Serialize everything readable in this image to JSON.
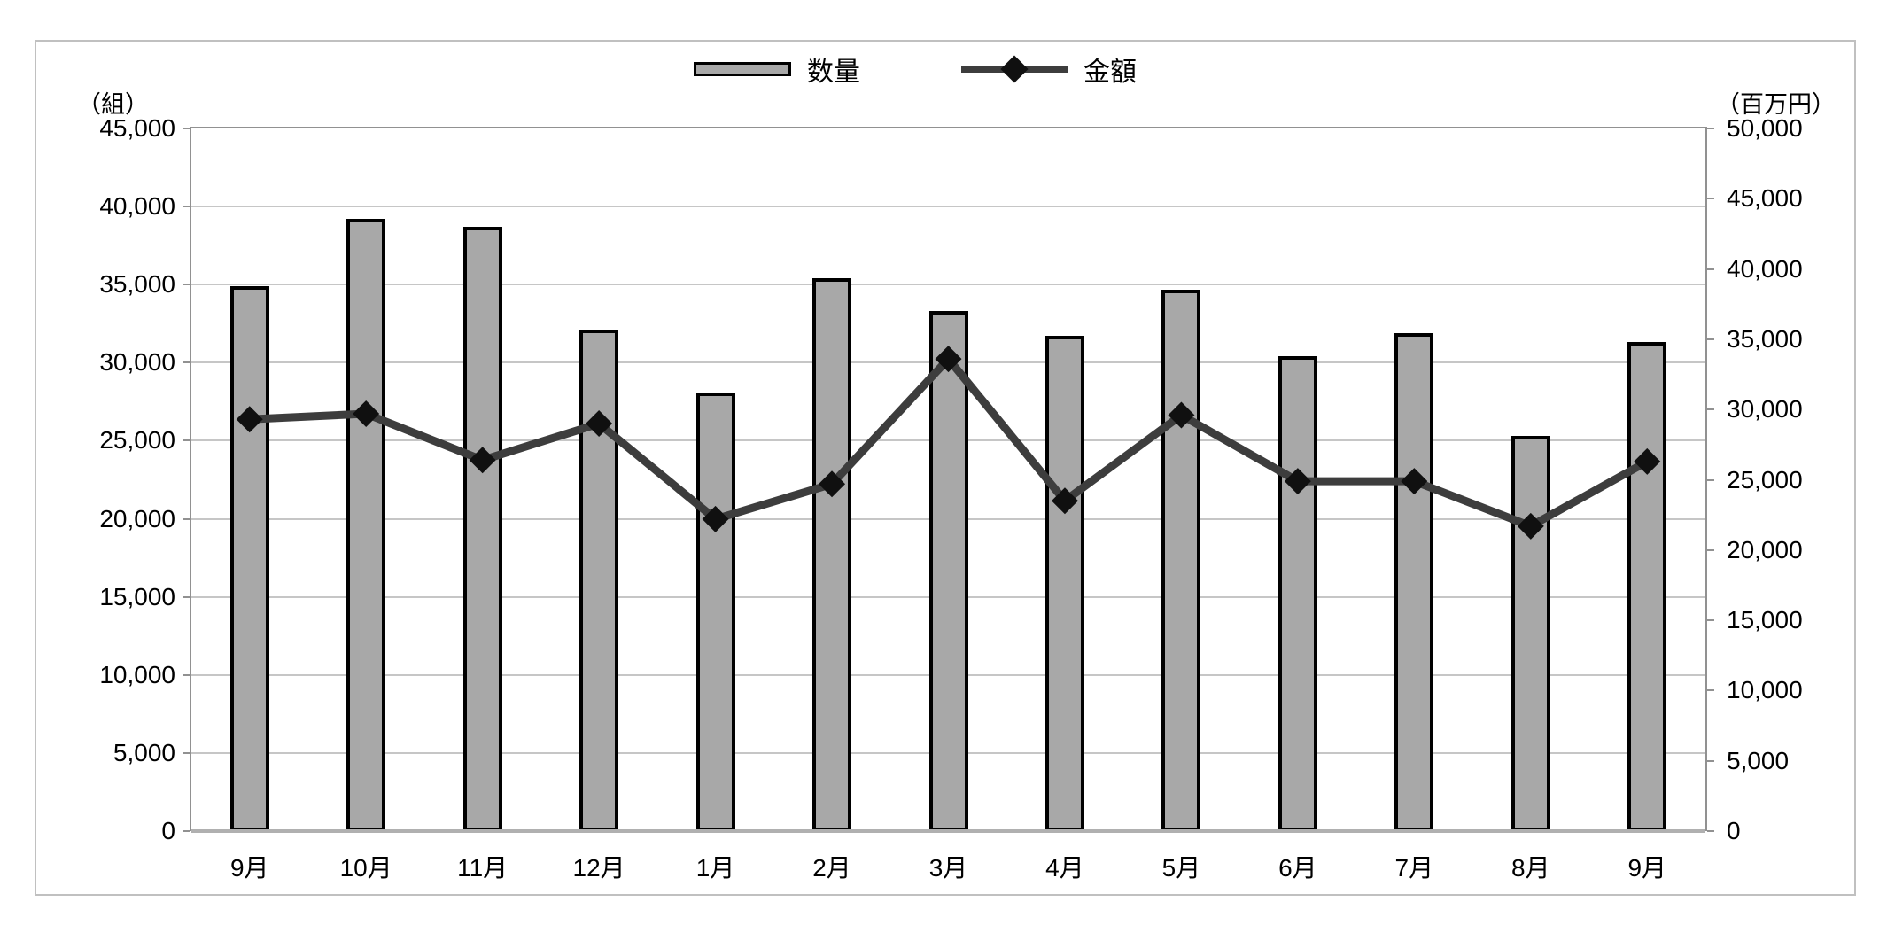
{
  "chart_data": {
    "type": "combo",
    "categories": [
      "9月",
      "10月",
      "11月",
      "12月",
      "1月",
      "2月",
      "3月",
      "4月",
      "5月",
      "6月",
      "7月",
      "8月",
      "9月"
    ],
    "series": [
      {
        "name": "数量",
        "chart": "bar",
        "axis": "left",
        "values": [
          34900,
          39200,
          38700,
          32100,
          28100,
          35400,
          33300,
          31700,
          34700,
          30400,
          31900,
          25300,
          31300
        ]
      },
      {
        "name": "金額",
        "chart": "line",
        "axis": "right",
        "values": [
          29300,
          29700,
          26400,
          29000,
          22200,
          24700,
          33600,
          23500,
          29600,
          24900,
          24900,
          21700,
          26300
        ]
      }
    ],
    "left_axis": {
      "title": "（組）",
      "min": 0,
      "max": 45000,
      "step": 5000,
      "tick_labels": [
        "0",
        "5,000",
        "10,000",
        "15,000",
        "20,000",
        "25,000",
        "30,000",
        "35,000",
        "40,000",
        "45,000"
      ]
    },
    "right_axis": {
      "title": "（百万円）",
      "min": 0,
      "max": 50000,
      "step": 5000,
      "tick_labels": [
        "0",
        "5,000",
        "10,000",
        "15,000",
        "20,000",
        "25,000",
        "30,000",
        "35,000",
        "40,000",
        "45,000",
        "50,000"
      ]
    },
    "legend_position": "top",
    "grid": true
  },
  "colors": {
    "bar_fill": "#a8a8a8",
    "bar_border": "#000000",
    "line": "#3d3d3d",
    "marker": "#101010",
    "gridline": "#c6c6c6",
    "axis_line": "#919191",
    "x_axis_line": "#b0b0b0",
    "outer_border": "#c0c0c0",
    "text": "#000000"
  }
}
